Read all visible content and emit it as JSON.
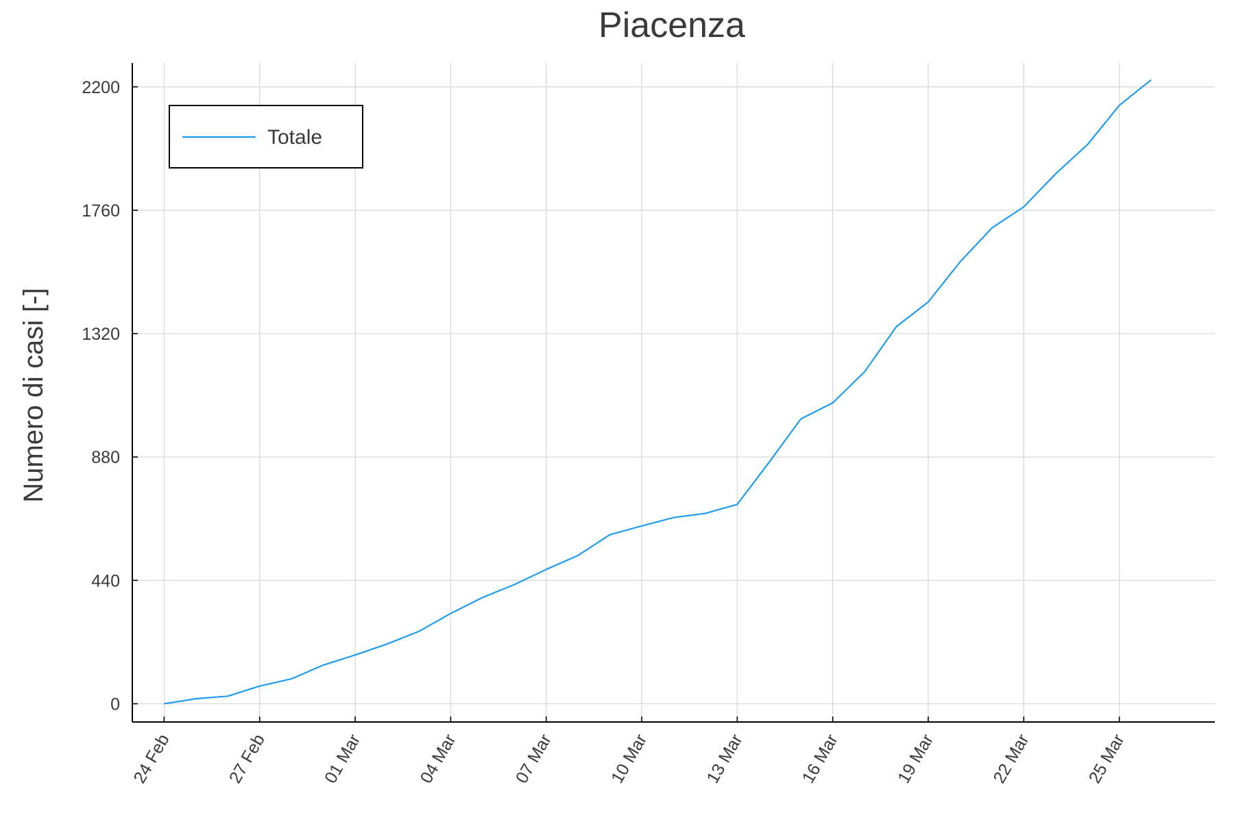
{
  "chart_data": {
    "type": "line",
    "title": "Piacenza",
    "xlabel": "",
    "ylabel": "Numero di casi [-]",
    "x": [
      "2020-02-24",
      "2020-02-25",
      "2020-02-26",
      "2020-02-27",
      "2020-02-28",
      "2020-02-29",
      "2020-03-01",
      "2020-03-02",
      "2020-03-03",
      "2020-03-04",
      "2020-03-05",
      "2020-03-06",
      "2020-03-07",
      "2020-03-08",
      "2020-03-09",
      "2020-03-10",
      "2020-03-11",
      "2020-03-12",
      "2020-03-13",
      "2020-03-14",
      "2020-03-15",
      "2020-03-16",
      "2020-03-17",
      "2020-03-18",
      "2020-03-19",
      "2020-03-20",
      "2020-03-21",
      "2020-03-22",
      "2020-03-23",
      "2020-03-24",
      "2020-03-25",
      "2020-03-26"
    ],
    "xlim": [
      "2020-02-23",
      "2020-03-28"
    ],
    "x_ticks": [
      "2020-02-24",
      "2020-02-27",
      "2020-03-01",
      "2020-03-04",
      "2020-03-07",
      "2020-03-10",
      "2020-03-13",
      "2020-03-16",
      "2020-03-19",
      "2020-03-22",
      "2020-03-25"
    ],
    "x_tick_labels": [
      "24 Feb",
      "27 Feb",
      "01 Mar",
      "04 Mar",
      "07 Mar",
      "10 Mar",
      "13 Mar",
      "16 Mar",
      "19 Mar",
      "22 Mar",
      "25 Mar"
    ],
    "y_ticks": [
      0,
      440,
      880,
      1320,
      1760,
      2200
    ],
    "y_tick_labels": [
      "0",
      "440",
      "880",
      "1320",
      "1760",
      "2200"
    ],
    "ylim": [
      -65,
      2285
    ],
    "grid": true,
    "legend": "top-left",
    "series": [
      {
        "name": "Totale",
        "color": "#1f9cf0",
        "values": [
          0,
          18,
          27,
          63,
          89,
          138,
          174,
          213,
          258,
          322,
          379,
          425,
          479,
          529,
          603,
          634,
          664,
          679,
          711,
          861,
          1016,
          1073,
          1184,
          1345,
          1433,
          1576,
          1697,
          1772,
          1890,
          1994,
          2134,
          2225
        ]
      }
    ]
  }
}
